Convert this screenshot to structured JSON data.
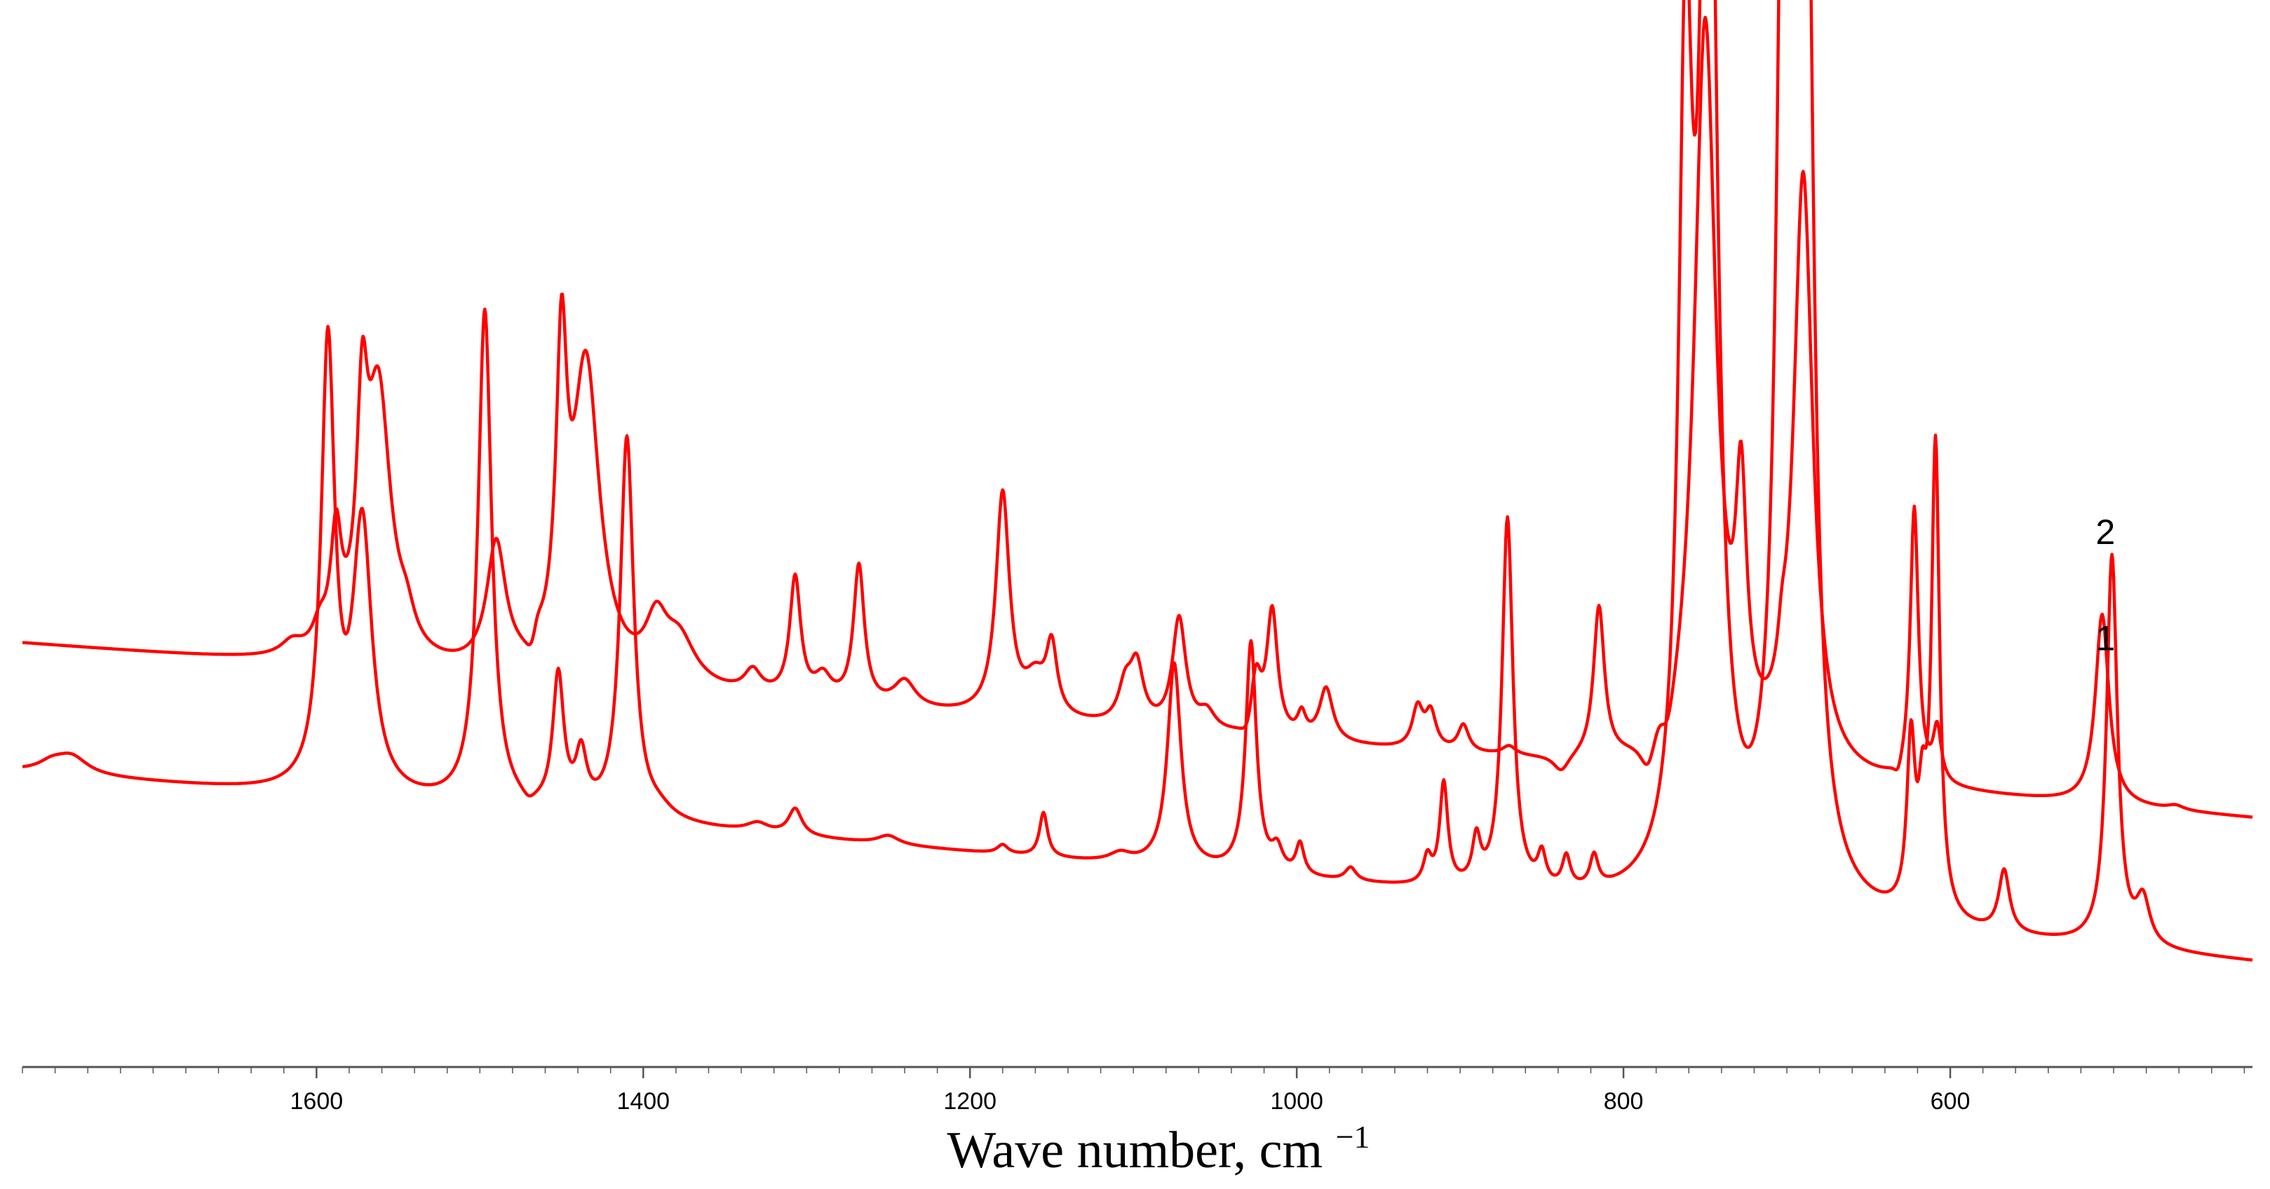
{
  "chart_data": {
    "type": "line",
    "xlabel": "Wave number, cm",
    "xlabel_superscript": "−1",
    "xlim": [
      1780,
      415
    ],
    "x_reversed": true,
    "xticks": [
      1600,
      1400,
      1200,
      1000,
      800,
      600
    ],
    "yticks": [],
    "grid": false,
    "legend": "none",
    "colors": {
      "series": "#ff0000",
      "axis": "#555555"
    },
    "series": [
      {
        "name": "2",
        "baseline": [
          [
            1780,
            0.955
          ],
          [
            415,
            0.56
          ]
        ],
        "peaks": [
          [
            1615,
            0.03,
            8
          ],
          [
            1598,
            0.05,
            5
          ],
          [
            1588,
            0.25,
            4
          ],
          [
            1572,
            0.45,
            4
          ],
          [
            1562,
            0.6,
            9
          ],
          [
            1545,
            0.06,
            6
          ],
          [
            1490,
            0.28,
            7
          ],
          [
            1465,
            0.05,
            4
          ],
          [
            1450,
            0.65,
            4
          ],
          [
            1435,
            0.7,
            10
          ],
          [
            1392,
            0.12,
            8
          ],
          [
            1378,
            0.1,
            12
          ],
          [
            1333,
            0.05,
            6
          ],
          [
            1307,
            0.27,
            4
          ],
          [
            1290,
            0.05,
            6
          ],
          [
            1268,
            0.31,
            4
          ],
          [
            1240,
            0.06,
            8
          ],
          [
            1180,
            0.5,
            5
          ],
          [
            1160,
            0.08,
            8
          ],
          [
            1150,
            0.15,
            4
          ],
          [
            1105,
            0.08,
            5
          ],
          [
            1098,
            0.13,
            5
          ],
          [
            1072,
            0.25,
            5
          ],
          [
            1055,
            0.04,
            6
          ],
          [
            1025,
            0.14,
            4
          ],
          [
            1015,
            0.28,
            4
          ],
          [
            997,
            0.05,
            3
          ],
          [
            982,
            0.12,
            5
          ],
          [
            926,
            0.09,
            4
          ],
          [
            918,
            0.08,
            4
          ],
          [
            898,
            0.06,
            4
          ],
          [
            870,
            0.02,
            5
          ],
          [
            815,
            0.34,
            4
          ],
          [
            778,
            0.04,
            5
          ],
          [
            750,
            1.68,
            8
          ],
          [
            728,
            0.52,
            4
          ],
          [
            703,
            0.08,
            3
          ],
          [
            690,
            1.34,
            7
          ],
          [
            622,
            0.62,
            3
          ],
          [
            608,
            0.12,
            3
          ],
          [
            507,
            0.43,
            5
          ],
          [
            462,
            0.01,
            6
          ]
        ],
        "dips": [
          [
            1468,
            0.06,
            5
          ],
          [
            1030,
            0.04,
            5
          ],
          [
            838,
            0.04,
            6
          ],
          [
            785,
            0.08,
            6
          ],
          [
            773,
            0.08,
            6
          ],
          [
            632,
            0.03,
            3
          ]
        ]
      },
      {
        "name": "1",
        "baseline": [
          [
            1780,
            0.665
          ],
          [
            415,
            0.235
          ]
        ],
        "peaks": [
          [
            1762,
            0.02,
            10
          ],
          [
            1750,
            0.04,
            12
          ],
          [
            1593,
            1.0,
            5
          ],
          [
            1572,
            0.6,
            7
          ],
          [
            1497,
            1.12,
            5
          ],
          [
            1452,
            0.3,
            4
          ],
          [
            1438,
            0.12,
            4
          ],
          [
            1410,
            0.86,
            5
          ],
          [
            1390,
            0.02,
            10
          ],
          [
            1330,
            0.02,
            8
          ],
          [
            1307,
            0.06,
            5
          ],
          [
            1250,
            0.02,
            8
          ],
          [
            1180,
            0.02,
            4
          ],
          [
            1155,
            0.1,
            3
          ],
          [
            1108,
            0.02,
            8
          ],
          [
            1075,
            0.46,
            5
          ],
          [
            1028,
            0.52,
            4
          ],
          [
            1012,
            0.05,
            4
          ],
          [
            998,
            0.07,
            3
          ],
          [
            967,
            0.03,
            4
          ],
          [
            920,
            0.06,
            3
          ],
          [
            910,
            0.23,
            3
          ],
          [
            890,
            0.1,
            3
          ],
          [
            871,
            0.84,
            4
          ],
          [
            850,
            0.07,
            3
          ],
          [
            835,
            0.07,
            3
          ],
          [
            818,
            0.07,
            3
          ],
          [
            762,
            1.73,
            5
          ],
          [
            748,
            2.81,
            6
          ],
          [
            702,
            1.99,
            5
          ],
          [
            695,
            1.94,
            5
          ],
          [
            688,
            1.98,
            5
          ],
          [
            624,
            0.37,
            3
          ],
          [
            617,
            0.2,
            3
          ],
          [
            609,
            1.06,
            3
          ],
          [
            567,
            0.14,
            4
          ],
          [
            501,
            0.88,
            4
          ],
          [
            482,
            0.1,
            5
          ]
        ],
        "dips": [
          [
            1470,
            0.02,
            5
          ]
        ]
      }
    ],
    "curve_labels": [
      {
        "text": "2",
        "x": 505,
        "y": 1.18
      },
      {
        "text": "1",
        "x": 505,
        "y": 0.94
      }
    ],
    "ylim": [
      0,
      2.36
    ]
  }
}
